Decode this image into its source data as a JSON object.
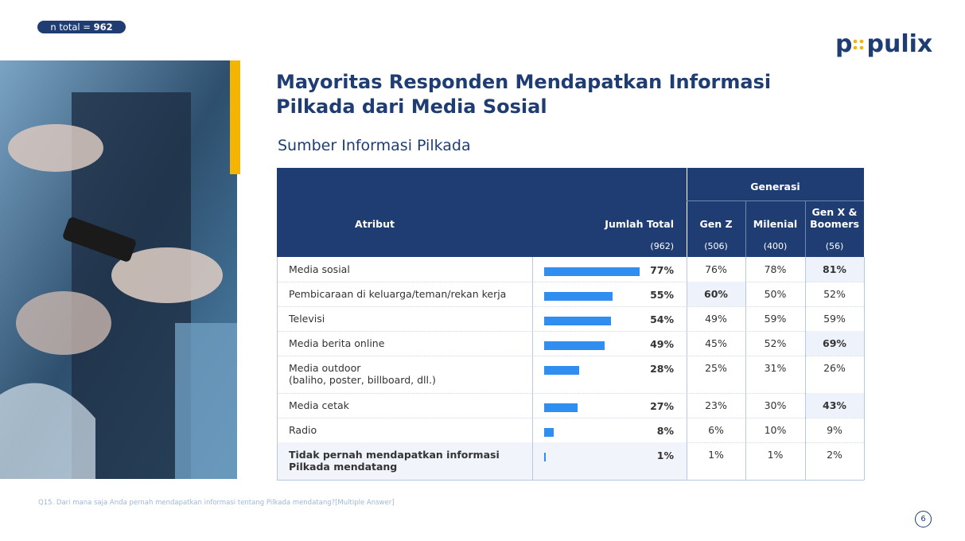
{
  "header": {
    "n_label": "n total =",
    "n_value": "962",
    "logo": [
      "p",
      "pulix"
    ]
  },
  "title": [
    "Mayoritas Responden Mendapatkan Informasi",
    "Pilkada dari Media Sosial"
  ],
  "subtitle": "Sumber Informasi Pilkada",
  "table": {
    "headers": {
      "attribute": "Atribut",
      "total": "Jumlah Total",
      "group": "Generasi",
      "generations": [
        "Gen Z",
        "Milenial",
        "Gen X & Boomers"
      ],
      "total_n": "(962)",
      "generation_n": [
        "(506)",
        "(400)",
        "(56)"
      ]
    },
    "rows": [
      {
        "label": [
          "Media sosial"
        ],
        "total": 77,
        "total_label": "77%",
        "gen": [
          "76%",
          "78%",
          "81%"
        ],
        "highlight": 2
      },
      {
        "label": [
          "Pembicaraan di keluarga/teman/rekan kerja"
        ],
        "total": 55,
        "total_label": "55%",
        "gen": [
          "60%",
          "50%",
          "52%"
        ],
        "highlight": 0
      },
      {
        "label": [
          "Televisi"
        ],
        "total": 54,
        "total_label": "54%",
        "gen": [
          "49%",
          "59%",
          "59%"
        ]
      },
      {
        "label": [
          "Media berita online"
        ],
        "total": 49,
        "total_label": "49%",
        "gen": [
          "45%",
          "52%",
          "69%"
        ],
        "highlight": 2
      },
      {
        "label": [
          "Media outdoor",
          "(baliho, poster, billboard, dll.)"
        ],
        "total": 28,
        "total_label": "28%",
        "gen": [
          "25%",
          "31%",
          "26%"
        ]
      },
      {
        "label": [
          "Media cetak"
        ],
        "total": 27,
        "total_label": "27%",
        "gen": [
          "23%",
          "30%",
          "43%"
        ],
        "highlight": 2
      },
      {
        "label": [
          "Radio"
        ],
        "total": 8,
        "total_label": "8%",
        "gen": [
          "6%",
          "10%",
          "9%"
        ]
      },
      {
        "label": [
          "Tidak pernah mendapatkan informasi",
          "Pilkada mendatang"
        ],
        "total": 1,
        "total_label": "1%",
        "gen": [
          "1%",
          "1%",
          "2%"
        ],
        "bold": true
      }
    ]
  },
  "footnote": "Q15. Dari mana saja Anda pernah mendapatkan informasi tentang Pilkada mendatang?[Multiple Answer]",
  "page_number": "6"
}
